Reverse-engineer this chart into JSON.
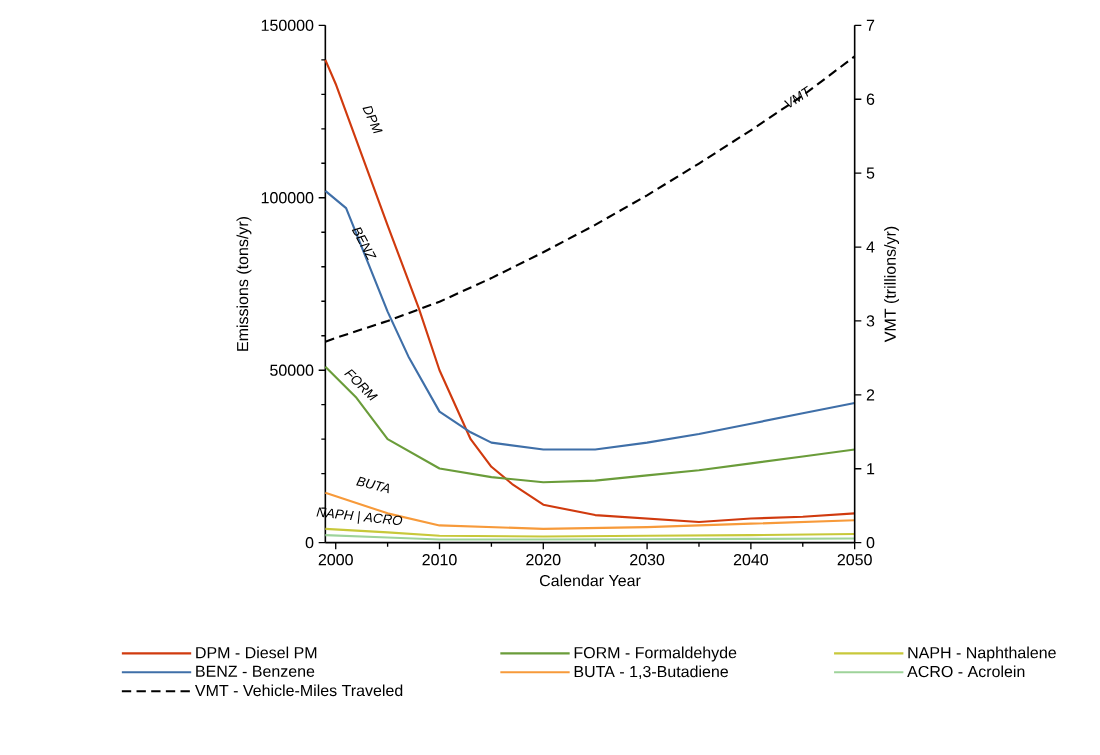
{
  "chart_data": {
    "type": "line",
    "xlabel": "Calendar Year",
    "ylabel": "Emissions (tons/yr)",
    "y2label": "VMT (trillions/yr)",
    "xlim": [
      1999,
      2050
    ],
    "xticks": [
      2000,
      2010,
      2020,
      2030,
      2040,
      2050
    ],
    "ylim": [
      0,
      150000
    ],
    "yticks": [
      0,
      50000,
      100000,
      150000
    ],
    "y2lim": [
      0,
      7
    ],
    "y2ticks": [
      0,
      1,
      2,
      3,
      4,
      5,
      6,
      7
    ],
    "legend": "bottom",
    "series": [
      {
        "name": "DPM - Diesel PM",
        "color": "#d03a0e",
        "x": [
          1999,
          2000,
          2005,
          2008,
          2010,
          2013,
          2015,
          2017,
          2020,
          2025,
          2030,
          2035,
          2040,
          2045,
          2050
        ],
        "values": [
          140000,
          133000,
          92000,
          68000,
          50000,
          30000,
          22000,
          17000,
          11000,
          8000,
          7000,
          6000,
          7000,
          7500,
          8500
        ]
      },
      {
        "name": "BENZ - Benzene",
        "color": "#3f6fa8",
        "x": [
          1999,
          2001,
          2003,
          2005,
          2007,
          2010,
          2013,
          2015,
          2020,
          2025,
          2030,
          2035,
          2040,
          2045,
          2050
        ],
        "values": [
          102000,
          97000,
          82000,
          67000,
          54000,
          38000,
          32000,
          29000,
          27000,
          27000,
          29000,
          31500,
          34500,
          37500,
          40500
        ]
      },
      {
        "name": "FORM - Formaldehyde",
        "color": "#6a9c3a",
        "x": [
          1999,
          2002,
          2005,
          2010,
          2015,
          2020,
          2025,
          2030,
          2035,
          2040,
          2045,
          2050
        ],
        "values": [
          51000,
          42000,
          30000,
          21500,
          19000,
          17500,
          18000,
          19500,
          21000,
          23000,
          25000,
          27000
        ]
      },
      {
        "name": "BUTA - 1,3-Butadiene",
        "color": "#f79a3a",
        "x": [
          1999,
          2005,
          2010,
          2015,
          2020,
          2030,
          2040,
          2050
        ],
        "values": [
          14500,
          8500,
          5000,
          4500,
          4000,
          4500,
          5500,
          6500
        ]
      },
      {
        "name": "NAPH - Naphthalene",
        "color": "#c8c83a",
        "x": [
          1999,
          2005,
          2010,
          2020,
          2030,
          2040,
          2050
        ],
        "values": [
          4000,
          3000,
          2000,
          1800,
          2000,
          2200,
          2500
        ]
      },
      {
        "name": "ACRO - Acrolein",
        "color": "#9ed39a",
        "x": [
          1999,
          2005,
          2010,
          2020,
          2030,
          2040,
          2050
        ],
        "values": [
          2200,
          1500,
          900,
          900,
          1000,
          1100,
          1200
        ]
      },
      {
        "name": "VMT - Vehicle-Miles Traveled",
        "color": "#000000",
        "axis": "y2",
        "line_style": "dashed",
        "x": [
          1999,
          2000,
          2005,
          2010,
          2015,
          2020,
          2025,
          2030,
          2035,
          2040,
          2045,
          2050
        ],
        "values": [
          2.72,
          2.77,
          3.0,
          3.26,
          3.58,
          3.93,
          4.3,
          4.7,
          5.13,
          5.58,
          6.05,
          6.58
        ]
      }
    ],
    "annotations": [
      "DPM",
      "BENZ",
      "FORM",
      "BUTA",
      "NAPH | ACRO",
      "VMT"
    ]
  }
}
